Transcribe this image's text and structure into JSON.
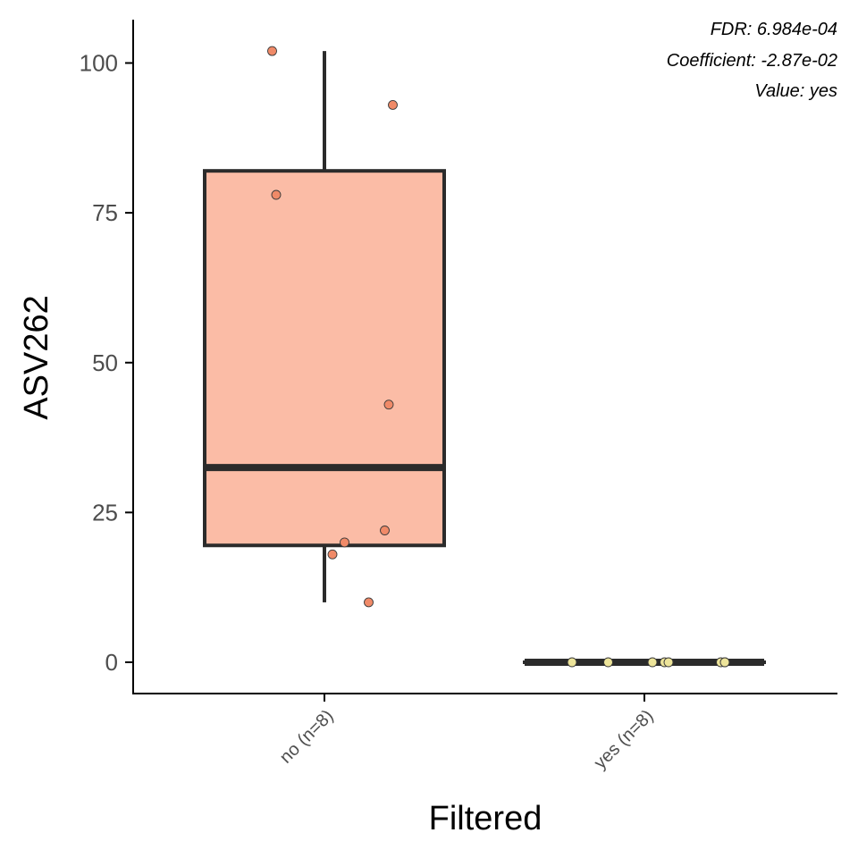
{
  "chart_data": {
    "type": "box",
    "title": "",
    "xlabel": "Filtered",
    "ylabel": "ASV262",
    "ylim": [
      -5,
      107
    ],
    "yticks": [
      "0",
      "25",
      "50",
      "75",
      "100"
    ],
    "ytick_values": [
      0,
      25,
      50,
      75,
      100
    ],
    "grid": false,
    "legend": "none",
    "categories": [
      "no (n=8)",
      "yes (n=8)"
    ],
    "boxes": [
      {
        "category": "no (n=8)",
        "min": 10,
        "q1": 19.5,
        "median": 32.5,
        "q3": 82,
        "max": 102,
        "color": "#fbbca6"
      },
      {
        "category": "yes (n=8)",
        "min": 0,
        "q1": 0,
        "median": 0,
        "q3": 0,
        "max": 0,
        "color": "#f4efb2"
      }
    ],
    "points": [
      {
        "category": "no (n=8)",
        "values": [
          102,
          93,
          78,
          43,
          22,
          20,
          18,
          10
        ],
        "jitter": [
          -0.13,
          0.17,
          -0.12,
          0.16,
          0.15,
          0.05,
          0.02,
          0.11
        ],
        "color": "#f08a68"
      },
      {
        "category": "yes (n=8)",
        "values": [
          0,
          0,
          0,
          0,
          0,
          0,
          0,
          0
        ],
        "jitter": [
          -0.18,
          -0.09,
          0.02,
          0.05,
          0.06,
          0.19,
          0.2,
          0.2
        ],
        "color": "#ede49a"
      }
    ],
    "annotations": [
      "FDR: 6.984e-04",
      "Coefficient: -2.87e-02",
      "Value: yes"
    ]
  }
}
